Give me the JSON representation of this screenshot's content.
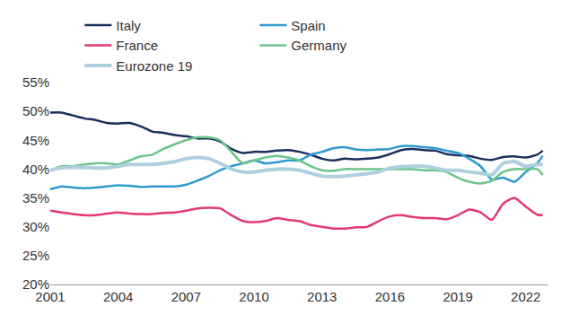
{
  "chart_data": {
    "type": "line",
    "x": [
      2001,
      2001.5,
      2002,
      2002.5,
      2003,
      2003.5,
      2004,
      2004.5,
      2005,
      2005.5,
      2006,
      2006.5,
      2007,
      2007.5,
      2008,
      2008.5,
      2009,
      2009.5,
      2010,
      2010.5,
      2011,
      2011.5,
      2012,
      2012.5,
      2013,
      2013.5,
      2014,
      2014.5,
      2015,
      2015.5,
      2016,
      2016.5,
      2017,
      2017.5,
      2018,
      2018.5,
      2019,
      2019.5,
      2020,
      2020.5,
      2021,
      2021.5,
      2022,
      2022.5,
      2022.75
    ],
    "series": [
      {
        "name": "Italy",
        "color": "#1b2f5e",
        "values": [
          49.8,
          49.8,
          49.3,
          48.8,
          48.5,
          48.0,
          47.9,
          48.0,
          47.4,
          46.5,
          46.3,
          45.9,
          45.7,
          45.3,
          45.3,
          44.8,
          43.5,
          42.8,
          43.0,
          43.0,
          43.2,
          43.3,
          43.0,
          42.5,
          41.8,
          41.5,
          41.8,
          41.7,
          41.8,
          42.0,
          42.6,
          43.3,
          43.5,
          43.3,
          43.2,
          42.6,
          42.4,
          42.3,
          41.8,
          41.6,
          42.1,
          42.2,
          42.0,
          42.5,
          43.2
        ]
      },
      {
        "name": "Spain",
        "color": "#2e9ad0",
        "values": [
          36.5,
          37.0,
          36.8,
          36.7,
          36.8,
          37.0,
          37.2,
          37.1,
          36.9,
          37.0,
          37.0,
          37.0,
          37.3,
          38.0,
          38.8,
          39.8,
          40.5,
          41.0,
          41.5,
          41.0,
          41.2,
          41.5,
          41.5,
          42.5,
          43.0,
          43.6,
          43.8,
          43.4,
          43.3,
          43.4,
          43.5,
          44.0,
          44.0,
          43.8,
          43.6,
          43.2,
          42.8,
          41.8,
          40.5,
          38.2,
          38.5,
          37.8,
          39.5,
          41.0,
          42.3
        ]
      },
      {
        "name": "France",
        "color": "#e33a6d",
        "values": [
          32.8,
          32.5,
          32.2,
          32.0,
          32.0,
          32.3,
          32.5,
          32.3,
          32.2,
          32.2,
          32.4,
          32.5,
          32.8,
          33.2,
          33.3,
          33.2,
          32.0,
          31.0,
          30.8,
          31.0,
          31.5,
          31.2,
          31.0,
          30.3,
          30.0,
          29.7,
          29.7,
          29.9,
          30.0,
          31.0,
          31.8,
          32.0,
          31.7,
          31.5,
          31.5,
          31.3,
          32.0,
          33.0,
          32.5,
          31.2,
          34.0,
          35.0,
          33.5,
          32.1,
          32.0
        ]
      },
      {
        "name": "Germany",
        "color": "#6cc48a",
        "values": [
          39.8,
          40.5,
          40.5,
          40.8,
          41.0,
          41.0,
          40.8,
          41.5,
          42.2,
          42.5,
          43.5,
          44.3,
          45.0,
          45.5,
          45.5,
          45.0,
          43.0,
          41.0,
          41.5,
          42.0,
          42.3,
          42.0,
          41.5,
          40.5,
          39.8,
          39.7,
          40.0,
          40.0,
          40.0,
          40.0,
          40.0,
          40.0,
          40.0,
          39.8,
          39.8,
          39.5,
          38.5,
          37.8,
          37.5,
          38.0,
          39.5,
          40.0,
          40.0,
          40.0,
          39.0
        ]
      },
      {
        "name": "Eurozone 19",
        "color": "#aecfdf",
        "values": [
          39.8,
          40.2,
          40.3,
          40.3,
          40.2,
          40.2,
          40.5,
          40.8,
          40.8,
          40.8,
          41.0,
          41.3,
          41.8,
          42.0,
          41.8,
          41.0,
          40.0,
          39.5,
          39.5,
          39.8,
          40.0,
          40.0,
          39.8,
          39.3,
          38.8,
          38.7,
          38.8,
          39.0,
          39.2,
          39.5,
          40.2,
          40.4,
          40.5,
          40.5,
          40.2,
          39.8,
          39.8,
          39.5,
          39.3,
          39.0,
          41.0,
          41.3,
          40.5,
          40.8,
          40.8
        ]
      }
    ],
    "xlim": [
      2001,
      2023
    ],
    "xticks": [
      2001,
      2004,
      2007,
      2010,
      2013,
      2016,
      2019,
      2022
    ],
    "ylim": [
      20,
      55
    ],
    "yticks": [
      {
        "value": 20,
        "label": "20%"
      },
      {
        "value": 25,
        "label": "25%"
      },
      {
        "value": 30,
        "label": "30%"
      },
      {
        "value": 35,
        "label": "35%"
      },
      {
        "value": 40,
        "label": "40%"
      },
      {
        "value": 45,
        "label": "45%"
      },
      {
        "value": 50,
        "label": "50%"
      },
      {
        "value": 55,
        "label": "55%"
      }
    ],
    "grid": false,
    "legend": "top"
  }
}
